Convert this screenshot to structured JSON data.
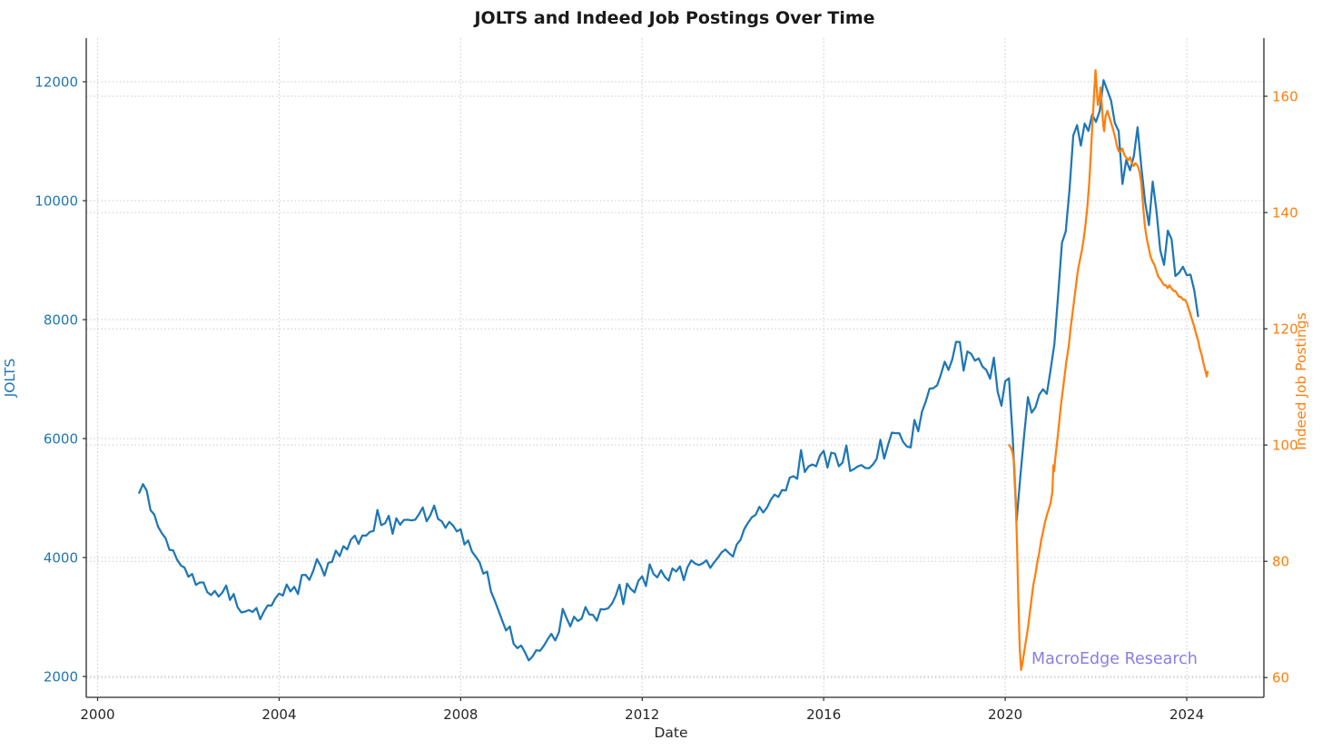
{
  "page": {
    "background": "#ffffff"
  },
  "chart_data": {
    "type": "line",
    "title": "JOLTS and Indeed Job Postings Over Time",
    "xlabel": "Date",
    "watermark": {
      "text": "MacroEdge Research",
      "color": "#7d70e0"
    },
    "grid": {
      "on": true,
      "style": "dotted",
      "color": "#c9c9c9"
    },
    "legend": "none",
    "x_axis": {
      "domain": [
        1999.75,
        2025.7
      ],
      "ticks": [
        2000,
        2004,
        2008,
        2012,
        2016,
        2020,
        2024
      ]
    },
    "left_axis": {
      "label": "JOLTS",
      "color": "#1f77b4",
      "domain": [
        1649,
        12733
      ],
      "ticks": [
        2000,
        4000,
        6000,
        8000,
        10000,
        12000
      ]
    },
    "right_axis": {
      "label": "Indeed Job Postings",
      "color": "#ff7f0e",
      "domain": [
        56.6,
        170.0
      ],
      "ticks": [
        60,
        80,
        100,
        120,
        140,
        160
      ]
    },
    "series": [
      {
        "name": "JOLTS",
        "axis": "left",
        "color": "#1f77b4",
        "line_width": 2.25,
        "frequency": "monthly",
        "start_year": 2000,
        "start_month": 12,
        "values": [
          5088,
          5234,
          5121,
          4796,
          4721,
          4517,
          4407,
          4322,
          4130,
          4118,
          3965,
          3868,
          3829,
          3676,
          3723,
          3539,
          3580,
          3580,
          3418,
          3369,
          3438,
          3344,
          3413,
          3529,
          3287,
          3386,
          3166,
          3076,
          3090,
          3117,
          3085,
          3151,
          2961,
          3093,
          3195,
          3193,
          3314,
          3394,
          3361,
          3547,
          3429,
          3508,
          3385,
          3704,
          3709,
          3623,
          3771,
          3972,
          3859,
          3696,
          3909,
          3927,
          4116,
          4023,
          4191,
          4136,
          4302,
          4368,
          4229,
          4370,
          4368,
          4430,
          4448,
          4800,
          4544,
          4574,
          4701,
          4398,
          4660,
          4550,
          4631,
          4635,
          4624,
          4636,
          4730,
          4840,
          4609,
          4712,
          4874,
          4650,
          4610,
          4499,
          4599,
          4537,
          4438,
          4476,
          4219,
          4287,
          4100,
          4013,
          3920,
          3729,
          3762,
          3435,
          3278,
          3110,
          2938,
          2773,
          2840,
          2550,
          2476,
          2520,
          2407,
          2270,
          2335,
          2441,
          2432,
          2516,
          2624,
          2717,
          2605,
          2744,
          3136,
          2981,
          2842,
          3005,
          2932,
          2972,
          3167,
          3044,
          3034,
          2936,
          3131,
          3127,
          3146,
          3223,
          3356,
          3543,
          3215,
          3561,
          3470,
          3414,
          3608,
          3683,
          3520,
          3886,
          3723,
          3666,
          3785,
          3675,
          3611,
          3816,
          3764,
          3851,
          3620,
          3838,
          3951,
          3899,
          3872,
          3902,
          3952,
          3826,
          3915,
          3994,
          4086,
          4134,
          4072,
          4016,
          4219,
          4296,
          4479,
          4584,
          4676,
          4717,
          4853,
          4756,
          4838,
          4970,
          5059,
          5019,
          5134,
          5128,
          5342,
          5367,
          5323,
          5805,
          5438,
          5533,
          5564,
          5534,
          5712,
          5795,
          5513,
          5763,
          5746,
          5534,
          5596,
          5885,
          5454,
          5486,
          5531,
          5554,
          5505,
          5501,
          5562,
          5656,
          5979,
          5662,
          5891,
          6099,
          6090,
          6090,
          5944,
          5868,
          5850,
          6313,
          6121,
          6454,
          6623,
          6840,
          6848,
          6896,
          7077,
          7293,
          7154,
          7330,
          7626,
          7625,
          7142,
          7465,
          7424,
          7311,
          7348,
          7210,
          7154,
          7007,
          7361,
          6787,
          6552,
          6966,
          7012,
          6002,
          4613,
          5362,
          6053,
          6697,
          6435,
          6526,
          6739,
          6830,
          6752,
          7155,
          7590,
          8420,
          9290,
          9483,
          10185,
          11098,
          11270,
          10925,
          11297,
          11173,
          11448,
          11324,
          11511,
          12027,
          11855,
          11681,
          11303,
          11170,
          10280,
          10685,
          10512,
          10746,
          11234,
          10563,
          9974,
          9590,
          10320,
          9824,
          9165,
          8920,
          9497,
          9350,
          8733,
          8790,
          8889,
          8748,
          8756,
          8488,
          8059
        ]
      },
      {
        "name": "Indeed Job Postings",
        "axis": "right",
        "color": "#ff7f0e",
        "line_width": 2.25,
        "frequency": "sub-monthly",
        "points": [
          [
            2020.085,
            100
          ],
          [
            2020.12,
            99.6
          ],
          [
            2020.16,
            98.8
          ],
          [
            2020.2,
            96.5
          ],
          [
            2020.23,
            91
          ],
          [
            2020.26,
            83
          ],
          [
            2020.29,
            73
          ],
          [
            2020.32,
            65
          ],
          [
            2020.35,
            61.3
          ],
          [
            2020.38,
            62.5
          ],
          [
            2020.42,
            64.5
          ],
          [
            2020.46,
            66.5
          ],
          [
            2020.5,
            68.5
          ],
          [
            2020.54,
            71
          ],
          [
            2020.58,
            73.5
          ],
          [
            2020.62,
            76
          ],
          [
            2020.66,
            77.5
          ],
          [
            2020.7,
            79.5
          ],
          [
            2020.75,
            81.5
          ],
          [
            2020.79,
            83.5
          ],
          [
            2020.83,
            85
          ],
          [
            2020.87,
            86.5
          ],
          [
            2020.92,
            88
          ],
          [
            2020.96,
            89
          ],
          [
            2021.0,
            90
          ],
          [
            2021.04,
            92
          ],
          [
            2021.06,
            96.5
          ],
          [
            2021.08,
            95.5
          ],
          [
            2021.1,
            97.5
          ],
          [
            2021.15,
            101
          ],
          [
            2021.19,
            104
          ],
          [
            2021.23,
            107
          ],
          [
            2021.27,
            109.5
          ],
          [
            2021.31,
            112
          ],
          [
            2021.35,
            114.5
          ],
          [
            2021.4,
            117
          ],
          [
            2021.44,
            120
          ],
          [
            2021.48,
            122.5
          ],
          [
            2021.52,
            125
          ],
          [
            2021.56,
            127.5
          ],
          [
            2021.6,
            130
          ],
          [
            2021.65,
            132
          ],
          [
            2021.69,
            133.5
          ],
          [
            2021.73,
            135.5
          ],
          [
            2021.77,
            138
          ],
          [
            2021.81,
            141
          ],
          [
            2021.85,
            145
          ],
          [
            2021.88,
            149
          ],
          [
            2021.92,
            155
          ],
          [
            2021.96,
            160.5
          ],
          [
            2021.99,
            164.5
          ],
          [
            2022.02,
            161
          ],
          [
            2022.04,
            158.5
          ],
          [
            2022.08,
            160
          ],
          [
            2022.1,
            161.5
          ],
          [
            2022.13,
            158.5
          ],
          [
            2022.16,
            155
          ],
          [
            2022.18,
            154
          ],
          [
            2022.21,
            156.5
          ],
          [
            2022.25,
            157.5
          ],
          [
            2022.29,
            156.5
          ],
          [
            2022.33,
            155.5
          ],
          [
            2022.37,
            154.5
          ],
          [
            2022.42,
            153
          ],
          [
            2022.46,
            151.5
          ],
          [
            2022.5,
            150.5
          ],
          [
            2022.54,
            150.5
          ],
          [
            2022.58,
            151
          ],
          [
            2022.62,
            150
          ],
          [
            2022.66,
            149.5
          ],
          [
            2022.71,
            149
          ],
          [
            2022.75,
            149.5
          ],
          [
            2022.79,
            148.5
          ],
          [
            2022.83,
            148
          ],
          [
            2022.87,
            148.5
          ],
          [
            2022.92,
            148
          ],
          [
            2022.96,
            147
          ],
          [
            2023.0,
            145
          ],
          [
            2023.02,
            143
          ],
          [
            2023.05,
            140
          ],
          [
            2023.08,
            137.5
          ],
          [
            2023.12,
            135.5
          ],
          [
            2023.16,
            134
          ],
          [
            2023.2,
            132.5
          ],
          [
            2023.25,
            131.5
          ],
          [
            2023.29,
            131
          ],
          [
            2023.33,
            130
          ],
          [
            2023.37,
            129
          ],
          [
            2023.42,
            128.5
          ],
          [
            2023.46,
            128
          ],
          [
            2023.5,
            127.5
          ],
          [
            2023.54,
            127.5
          ],
          [
            2023.58,
            127
          ],
          [
            2023.62,
            127.5
          ],
          [
            2023.66,
            127
          ],
          [
            2023.71,
            126.5
          ],
          [
            2023.75,
            126.5
          ],
          [
            2023.79,
            126
          ],
          [
            2023.83,
            125.5
          ],
          [
            2023.87,
            125.5
          ],
          [
            2023.92,
            125
          ],
          [
            2023.96,
            125
          ],
          [
            2024.0,
            124.5
          ],
          [
            2024.04,
            123.5
          ],
          [
            2024.08,
            122.5
          ],
          [
            2024.12,
            121.5
          ],
          [
            2024.16,
            120.5
          ],
          [
            2024.21,
            119
          ],
          [
            2024.25,
            118
          ],
          [
            2024.29,
            116.5
          ],
          [
            2024.33,
            115.5
          ],
          [
            2024.37,
            114
          ],
          [
            2024.42,
            112.5
          ],
          [
            2024.44,
            111.8
          ],
          [
            2024.46,
            112.6
          ]
        ]
      }
    ]
  }
}
